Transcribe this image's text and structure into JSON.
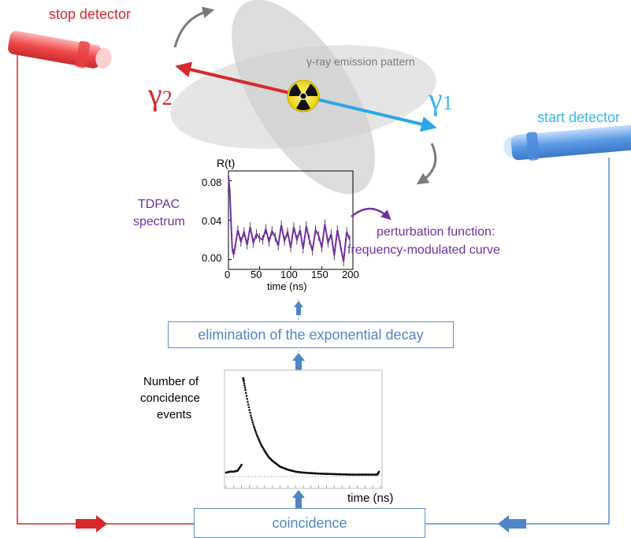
{
  "detectors": {
    "stop": "stop detector",
    "start": "start detector"
  },
  "gamma": {
    "g2_symbol": "γ",
    "g2_sub": "2",
    "g1_symbol": "γ",
    "g1_sub": "1"
  },
  "emission_label": "γ-ray emission pattern",
  "tdpac": {
    "label_line1": "TDPAC",
    "label_line2": "spectrum",
    "ylabel": "R(t)",
    "xlabel": "time (ns)",
    "perturbation_line1": "perturbation function:",
    "perturbation_line2": "frequency-modulated curve"
  },
  "boxes": {
    "elimination": "elimination of the exponential decay",
    "coincidence": "coincidence"
  },
  "decay": {
    "label_line1": "Number of",
    "label_line2": "concidence",
    "label_line3": "events",
    "xlabel": "time (ns)"
  },
  "colors": {
    "stop": "#d8282b",
    "start": "#4a8fd6",
    "gamma1": "#3ab7ea",
    "spectrum": "#7030a0",
    "box": "#4f86c6"
  },
  "chart_data": [
    {
      "type": "line",
      "title": "",
      "xlabel": "time (ns)",
      "ylabel": "R(t)",
      "xlim": [
        0,
        200
      ],
      "ylim": [
        -0.01,
        0.09
      ],
      "x_ticks": [
        0,
        50,
        100,
        150,
        200
      ],
      "y_ticks": [
        "0.00",
        "0.04",
        "0.08"
      ],
      "series": [
        {
          "x": [
            0,
            2,
            4,
            6,
            8,
            10,
            15,
            20,
            25,
            30,
            35,
            40,
            45,
            50,
            55,
            60,
            65,
            70,
            75,
            80,
            85,
            90,
            95,
            100,
            105,
            110,
            115,
            120,
            125,
            130,
            135,
            140,
            145,
            150,
            155,
            160,
            165,
            170,
            175,
            180,
            185,
            190,
            195
          ],
          "y": [
            0.085,
            0.07,
            0.04,
            0.012,
            0.006,
            0.01,
            0.03,
            0.018,
            0.028,
            0.015,
            0.033,
            0.017,
            0.026,
            0.022,
            0.02,
            0.031,
            0.018,
            0.029,
            0.023,
            0.014,
            0.035,
            0.019,
            0.028,
            0.012,
            0.033,
            0.02,
            0.03,
            0.011,
            0.034,
            0.02,
            0.009,
            0.03,
            0.024,
            0.012,
            0.036,
            0.017,
            0.026,
            0.004,
            0.03,
            0.014,
            -0.002,
            0.028,
            0.02
          ]
        }
      ]
    },
    {
      "type": "scatter",
      "title": "",
      "xlabel": "time (ns)",
      "ylabel": "Number of concidence events",
      "series": [
        {
          "x": [
            0,
            5,
            10,
            15,
            20,
            22,
            23,
            25,
            28,
            32,
            36,
            40,
            45,
            50,
            55,
            60,
            70,
            80,
            90,
            100,
            120,
            140,
            160,
            180,
            196,
            198
          ],
          "y": [
            0.04,
            0.05,
            0.05,
            0.06,
            0.12,
            1.0,
            0.97,
            0.88,
            0.76,
            0.62,
            0.51,
            0.42,
            0.33,
            0.26,
            0.2,
            0.16,
            0.1,
            0.07,
            0.05,
            0.04,
            0.03,
            0.025,
            0.02,
            0.02,
            0.02,
            0.05
          ]
        }
      ]
    }
  ]
}
